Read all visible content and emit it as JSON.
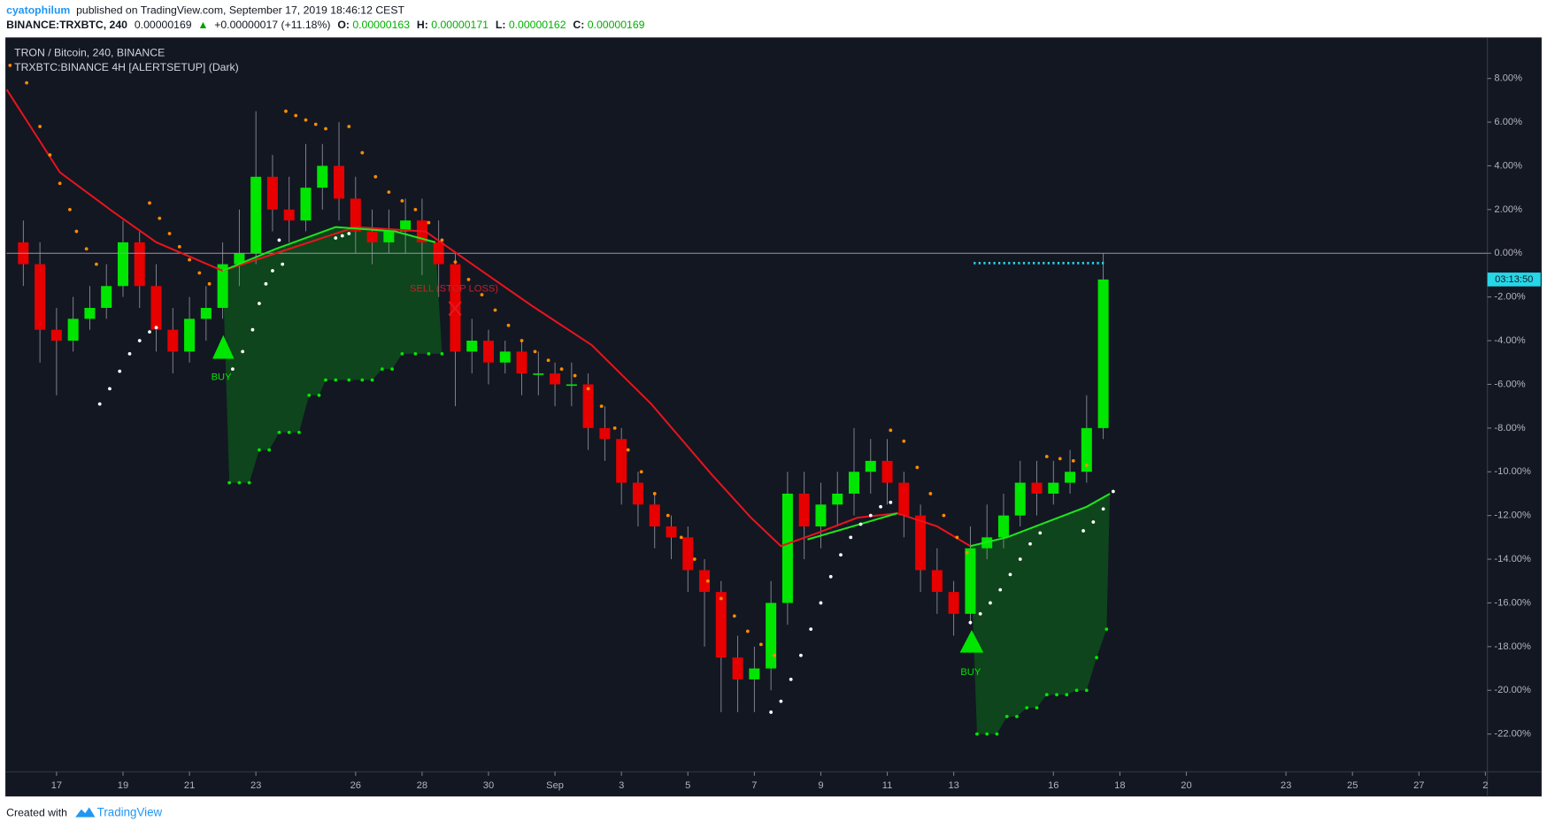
{
  "header": {
    "user": "cyatophilum",
    "published": "published on TradingView.com, September 17, 2019 18:46:12 CEST",
    "symbol": "BINANCE:TRXBTC, 240",
    "last": "0.00000169",
    "arrow": "▲",
    "change": "+0.00000017 (+11.18%)",
    "o_label": "O:",
    "o_value": "0.00000163",
    "h_label": "H:",
    "h_value": "0.00000171",
    "l_label": "L:",
    "l_value": "0.00000162",
    "c_label": "C:",
    "c_value": "0.00000169"
  },
  "footer": {
    "created": "Created with",
    "brand": "TradingView"
  },
  "chart_data": {
    "type": "candlestick",
    "title": "TRON / Bitcoin, 240, BINANCE",
    "subtitle": "TRXBTC:BINANCE 4H [ALERTSETUP] (Dark)",
    "up_color": "#00e600",
    "down_color": "#e60000",
    "x": [
      -1,
      -0.5,
      0,
      0.5,
      1,
      1.5,
      2,
      2.5,
      3,
      3.5,
      4,
      4.5,
      5,
      5.5,
      6,
      6.5,
      7,
      7.5,
      8,
      8.5,
      9,
      9.5,
      10,
      10.5,
      11,
      11.5,
      12,
      12.5,
      13,
      13.5,
      14,
      14.5,
      15,
      15.5,
      16,
      16.5,
      17,
      17.5,
      18,
      18.5,
      19,
      19.5,
      20,
      20.5,
      21,
      21.5,
      22,
      22.5,
      23,
      23.5,
      24,
      24.5,
      25,
      25.5,
      26,
      26.5,
      27,
      27.5,
      28,
      28.5,
      29,
      29.5,
      30,
      30.5,
      31,
      31.5
    ],
    "open": [
      0.5,
      -0.5,
      -3.5,
      -4.0,
      -3.0,
      -2.5,
      -1.5,
      0.5,
      -1.5,
      -3.5,
      -4.5,
      -3.0,
      -2.5,
      -0.5,
      0.0,
      3.5,
      2.0,
      1.5,
      3.0,
      4.0,
      2.5,
      1.0,
      0.5,
      1.0,
      1.5,
      0.5,
      -0.5,
      -4.5,
      -4.0,
      -5.0,
      -4.5,
      -5.5,
      -5.5,
      -6.0,
      -6.0,
      -8.0,
      -8.5,
      -10.5,
      -11.5,
      -12.5,
      -13.0,
      -14.5,
      -15.5,
      -18.5,
      -19.5,
      -19.0,
      -16.0,
      -11.0,
      -12.5,
      -11.5,
      -11.0,
      -10.0,
      -9.5,
      -10.5,
      -12.0,
      -14.5,
      -15.5,
      -16.5,
      -13.5,
      -13.0,
      -12.0,
      -10.5,
      -11.0,
      -10.5,
      -10.0,
      -8.0
    ],
    "high": [
      1.5,
      0.5,
      -2.5,
      -2.0,
      -1.5,
      -0.5,
      1.5,
      1.0,
      -0.5,
      -2.5,
      -2.0,
      -1.5,
      0.5,
      2.0,
      6.5,
      4.5,
      3.5,
      5.0,
      5.0,
      6.0,
      3.5,
      2.0,
      2.0,
      2.5,
      2.5,
      1.5,
      0.0,
      -3.0,
      -3.5,
      -4.0,
      -4.0,
      -4.5,
      -5.0,
      -5.0,
      -5.5,
      -7.0,
      -8.0,
      -10.0,
      -11.0,
      -12.0,
      -12.5,
      -14.0,
      -15.0,
      -17.5,
      -18.0,
      -15.0,
      -10.0,
      -10.0,
      -10.5,
      -10.0,
      -8.0,
      -8.5,
      -8.5,
      -10.0,
      -11.5,
      -13.5,
      -15.0,
      -12.5,
      -11.5,
      -11.0,
      -9.5,
      -9.5,
      -9.5,
      -9.0,
      -6.5,
      0.0
    ],
    "low": [
      -1.5,
      -5.0,
      -6.5,
      -4.5,
      -3.5,
      -3.0,
      -2.0,
      -2.5,
      -4.5,
      -5.5,
      -5.0,
      -4.0,
      -3.0,
      -1.5,
      -0.5,
      1.0,
      0.5,
      1.0,
      2.0,
      1.5,
      0.0,
      -0.5,
      0.0,
      0.0,
      -1.0,
      -2.0,
      -7.0,
      -5.5,
      -6.0,
      -5.5,
      -6.5,
      -6.5,
      -7.0,
      -7.0,
      -9.0,
      -9.5,
      -11.5,
      -12.5,
      -13.5,
      -14.0,
      -15.5,
      -18.0,
      -21.0,
      -21.0,
      -21.0,
      -20.0,
      -17.0,
      -14.0,
      -13.5,
      -12.5,
      -12.0,
      -11.0,
      -11.5,
      -13.0,
      -15.5,
      -16.5,
      -17.5,
      -17.0,
      -14.0,
      -13.5,
      -12.5,
      -12.0,
      -11.5,
      -11.0,
      -10.5,
      -8.5
    ],
    "close": [
      -0.5,
      -3.5,
      -4.0,
      -3.0,
      -2.5,
      -1.5,
      0.5,
      -1.5,
      -3.5,
      -4.5,
      -3.0,
      -2.5,
      -0.5,
      0.0,
      3.5,
      2.0,
      1.5,
      3.0,
      4.0,
      2.5,
      1.0,
      0.5,
      1.0,
      1.5,
      0.5,
      -0.5,
      -4.5,
      -4.0,
      -5.0,
      -4.5,
      -5.5,
      -5.5,
      -6.0,
      -6.0,
      -8.0,
      -8.5,
      -10.5,
      -11.5,
      -12.5,
      -13.0,
      -14.5,
      -15.5,
      -18.5,
      -19.5,
      -19.0,
      -16.0,
      -11.0,
      -12.5,
      -11.5,
      -11.0,
      -10.0,
      -9.5,
      -10.5,
      -12.0,
      -14.5,
      -15.5,
      -16.5,
      -13.5,
      -13.0,
      -12.0,
      -10.5,
      -11.0,
      -10.5,
      -10.0,
      -8.0,
      -1.2
    ],
    "lines": [
      {
        "color": "#e8141c",
        "x": [
          -1.5,
          0.1,
          1.7,
          3.0,
          5.0,
          7.2,
          9.0,
          11.1,
          12.6,
          14.3,
          16.1,
          17.9,
          19.7,
          20.9,
          21.8,
          22.9,
          24.1,
          25.3,
          26.5,
          27.5
        ],
        "values": [
          7.5,
          3.7,
          1.9,
          0.5,
          -0.8,
          0.3,
          1.2,
          1.0,
          -0.6,
          -2.4,
          -4.2,
          -6.9,
          -10.1,
          -12.1,
          -13.4,
          -12.8,
          -12.1,
          -11.9,
          -12.5,
          -13.4
        ]
      },
      {
        "color": "#1ee61e",
        "x": [
          5.0,
          6.6,
          8.4,
          10.2,
          11.4,
          null,
          22.6,
          24.4,
          25.3,
          null,
          27.5,
          28.6,
          29.8,
          31.0,
          31.7
        ],
        "values": [
          -0.8,
          0.2,
          1.2,
          1.0,
          0.5,
          null,
          -13.1,
          -12.3,
          -11.9,
          null,
          -13.4,
          -13.0,
          -12.3,
          -11.6,
          -11.0
        ]
      },
      {
        "color": "#26d7e8",
        "dotted": true,
        "x": [
          27.6,
          31.6
        ],
        "values": [
          -0.45,
          -0.45
        ]
      }
    ],
    "dots": [
      {
        "color": "#ff8c00",
        "x": [
          -1.4,
          -0.9,
          -0.5,
          -0.2,
          0.1,
          0.4,
          0.6,
          0.9,
          1.2,
          2.8,
          3.1,
          3.4,
          3.7,
          4.0,
          4.3,
          4.6,
          6.9,
          7.2,
          7.5,
          7.8,
          8.1,
          8.8,
          9.2,
          9.6,
          10.0,
          10.4,
          10.8,
          11.2,
          11.6,
          12.0,
          12.4,
          12.8,
          13.2,
          13.6,
          14.0,
          14.4,
          14.8,
          15.2,
          15.6,
          16.0,
          16.4,
          16.8,
          17.2,
          17.6,
          18.0,
          18.4,
          18.8,
          19.2,
          19.6,
          20.0,
          20.4,
          20.8,
          21.2,
          21.6,
          25.1,
          25.5,
          25.9,
          26.3,
          26.7,
          27.1,
          27.4,
          29.8,
          30.2,
          30.6,
          31.0
        ],
        "values": [
          8.6,
          7.8,
          5.8,
          4.5,
          3.2,
          2.0,
          1.0,
          0.2,
          -0.5,
          2.3,
          1.6,
          0.9,
          0.3,
          -0.3,
          -0.9,
          -1.4,
          6.5,
          6.3,
          6.1,
          5.9,
          5.7,
          5.8,
          4.6,
          3.5,
          2.8,
          2.4,
          2.0,
          1.4,
          0.6,
          -0.4,
          -1.2,
          -1.9,
          -2.6,
          -3.3,
          -4.0,
          -4.5,
          -4.9,
          -5.3,
          -5.6,
          -6.2,
          -7.0,
          -8.0,
          -9.0,
          -10.0,
          -11.0,
          -12.0,
          -13.0,
          -14.0,
          -15.0,
          -15.8,
          -16.6,
          -17.3,
          -17.9,
          -18.4,
          -8.1,
          -8.6,
          -9.8,
          -11.0,
          -12.0,
          -13.0,
          -13.7,
          -9.3,
          -9.4,
          -9.5,
          -9.7
        ]
      },
      {
        "color": "#ffffff",
        "x": [
          1.3,
          1.6,
          1.9,
          2.2,
          2.5,
          2.8,
          3.0,
          5.3,
          5.6,
          5.9,
          6.1,
          6.3,
          6.5,
          6.8,
          6.7,
          8.4,
          8.6,
          8.8,
          21.5,
          21.8,
          22.1,
          22.4,
          22.7,
          23.0,
          23.3,
          23.6,
          23.9,
          24.2,
          24.5,
          24.8,
          25.1,
          27.5,
          27.8,
          28.1,
          28.4,
          28.7,
          29.0,
          29.3,
          29.6,
          30.9,
          31.2,
          31.5,
          31.8
        ],
        "values": [
          -6.9,
          -6.2,
          -5.4,
          -4.6,
          -4.0,
          -3.6,
          -3.4,
          -5.3,
          -4.5,
          -3.5,
          -2.3,
          -1.4,
          -0.8,
          -0.5,
          0.6,
          0.7,
          0.8,
          0.9,
          -21.0,
          -20.5,
          -19.5,
          -18.4,
          -17.2,
          -16.0,
          -14.8,
          -13.8,
          -13.0,
          -12.4,
          -12.0,
          -11.6,
          -11.4,
          -16.9,
          -16.5,
          -16.0,
          -15.4,
          -14.7,
          -14.0,
          -13.3,
          -12.8,
          -12.7,
          -12.3,
          -11.7,
          -10.9
        ]
      },
      {
        "color": "#00e600",
        "fill": "#0e4a1c",
        "x": [
          5.2,
          5.5,
          5.8,
          6.1,
          6.4,
          6.7,
          7.0,
          7.3,
          7.6,
          7.9,
          8.1,
          8.4,
          8.8,
          9.2,
          9.5,
          9.8,
          10.1,
          10.4,
          10.8,
          11.2,
          11.6,
          27.7,
          28.0,
          28.3,
          28.6,
          28.9,
          29.2,
          29.5,
          29.8,
          30.1,
          30.4,
          30.7,
          31.0,
          31.3,
          31.6
        ],
        "values": [
          -10.5,
          -10.5,
          -10.5,
          -9.0,
          -9.0,
          -8.2,
          -8.2,
          -8.2,
          -6.5,
          -6.5,
          -5.8,
          -5.8,
          -5.8,
          -5.8,
          -5.8,
          -5.3,
          -5.3,
          -4.6,
          -4.6,
          -4.6,
          -4.6,
          -22.0,
          -22.0,
          -22.0,
          -21.2,
          -21.2,
          -20.8,
          -20.8,
          -20.2,
          -20.2,
          -20.2,
          -20.0,
          -20.0,
          -18.5,
          -17.2
        ]
      }
    ],
    "price_line": 0,
    "countdown": "03:13:50",
    "annotations": [
      "BUY",
      "SELL (STOP LOSS)",
      "BUY"
    ],
    "xlim": [
      -1.51,
      43.06
    ],
    "ylim": [
      -23.73,
      9.83
    ],
    "grid": false,
    "xticks": [
      {
        "value": 0,
        "label": "17"
      },
      {
        "value": 2,
        "label": "19"
      },
      {
        "value": 4,
        "label": "21"
      },
      {
        "value": 6,
        "label": "23"
      },
      {
        "value": 9,
        "label": "26"
      },
      {
        "value": 11,
        "label": "28"
      },
      {
        "value": 13,
        "label": "30"
      },
      {
        "value": 15,
        "label": "Sep"
      },
      {
        "value": 17,
        "label": "3"
      },
      {
        "value": 19,
        "label": "5"
      },
      {
        "value": 21,
        "label": "7"
      },
      {
        "value": 23,
        "label": "9"
      },
      {
        "value": 25,
        "label": "11"
      },
      {
        "value": 27,
        "label": "13"
      },
      {
        "value": 30,
        "label": "16"
      },
      {
        "value": 32,
        "label": "18"
      },
      {
        "value": 34,
        "label": "20"
      },
      {
        "value": 37,
        "label": "23"
      },
      {
        "value": 39,
        "label": "25"
      },
      {
        "value": 41,
        "label": "27"
      },
      {
        "value": 43,
        "label": "2"
      }
    ],
    "yticks": [
      {
        "value": 8,
        "label": "8.00%"
      },
      {
        "value": 6,
        "label": "6.00%"
      },
      {
        "value": 4,
        "label": "4.00%"
      },
      {
        "value": 2,
        "label": "2.00%"
      },
      {
        "value": 0,
        "label": "0.00%"
      },
      {
        "value": -2,
        "label": "-2.00%"
      },
      {
        "value": -4,
        "label": "-4.00%"
      },
      {
        "value": -6,
        "label": "-6.00%"
      },
      {
        "value": -8,
        "label": "-8.00%"
      },
      {
        "value": -10,
        "label": "-10.00%"
      },
      {
        "value": -12,
        "label": "-12.00%"
      },
      {
        "value": -14,
        "label": "-14.00%"
      },
      {
        "value": -16,
        "label": "-16.00%"
      },
      {
        "value": -18,
        "label": "-18.00%"
      },
      {
        "value": -20,
        "label": "-20.00%"
      },
      {
        "value": -22,
        "label": "-22.00%"
      }
    ]
  }
}
